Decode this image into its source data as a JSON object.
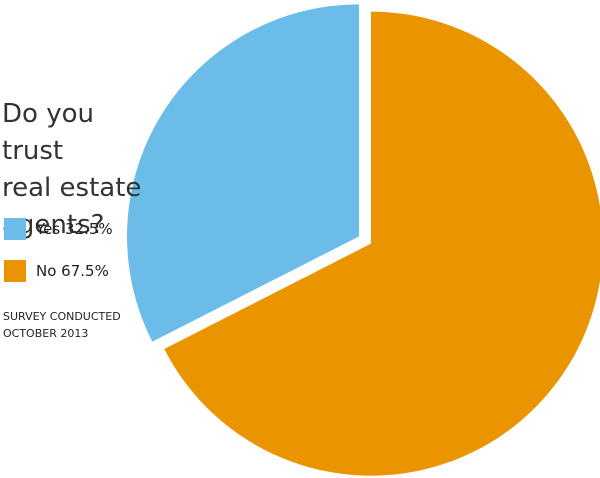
{
  "chart_data": {
    "type": "pie",
    "title_lines": [
      "Do you trust",
      "real estate",
      "agents?"
    ],
    "slices": [
      {
        "label": "Yes",
        "value": 32.5,
        "legend": "Yes 32.5%",
        "color": "#6bbce8"
      },
      {
        "label": "No",
        "value": 67.5,
        "legend": "No 67.5%",
        "color": "#ea9400"
      }
    ],
    "exploded": true,
    "legend_position": "left"
  },
  "note_lines": [
    "SURVEY CONDUCTED",
    "OCTOBER 2013"
  ]
}
